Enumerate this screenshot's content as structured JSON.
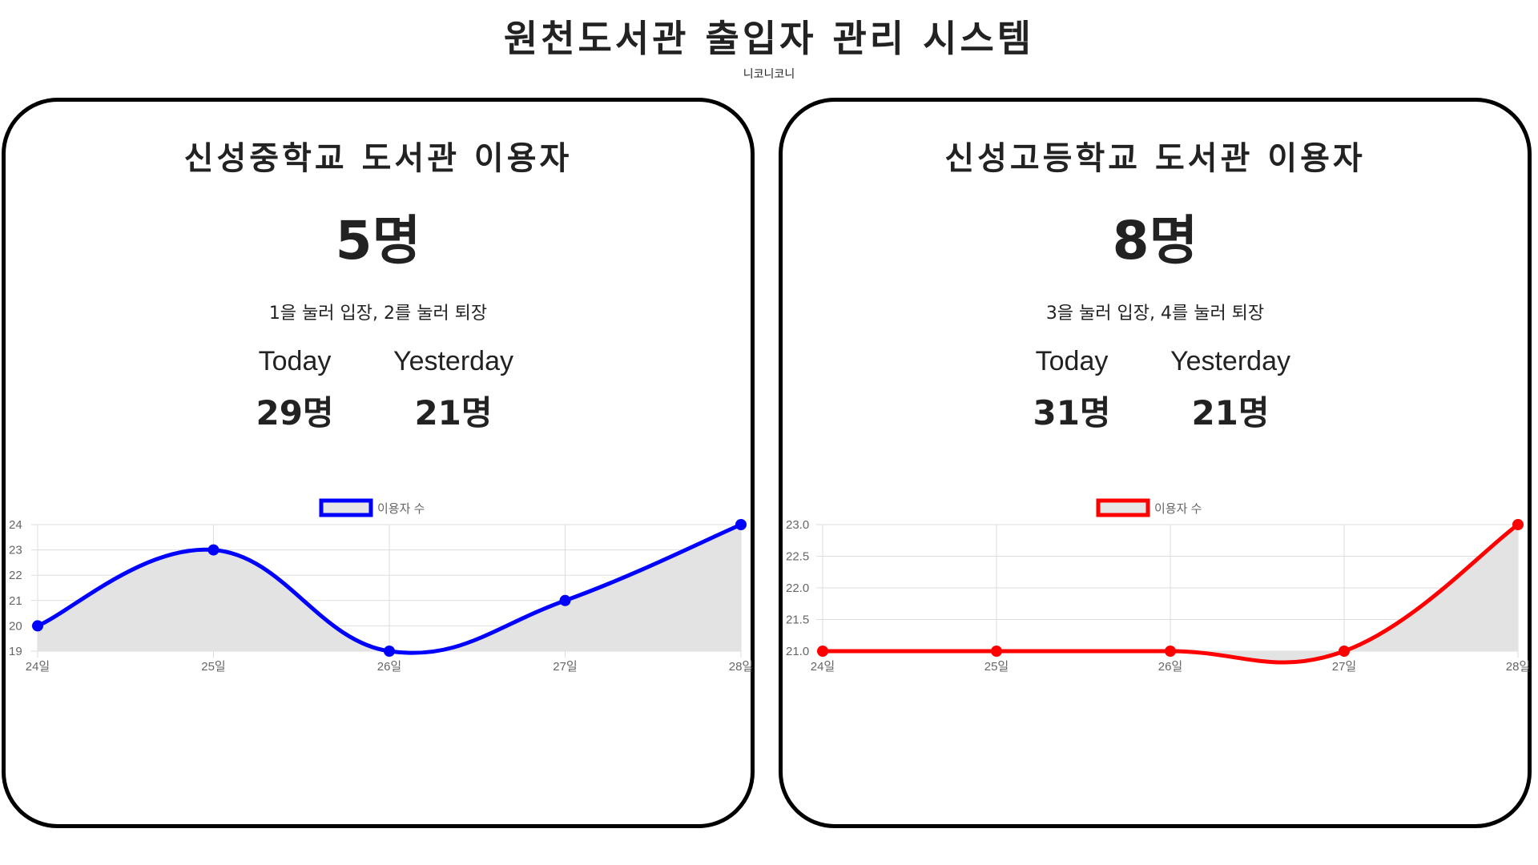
{
  "page": {
    "title": "원천도서관 출입자 관리 시스템",
    "subtitle": "니코니코니"
  },
  "panels": [
    {
      "title": "신성중학교 도서관 이용자",
      "current_count": "5명",
      "instructions": "1을 눌러 입장, 2를 눌러 퇴장",
      "today_label": "Today",
      "today_value": "29명",
      "yesterday_label": "Yesterday",
      "yesterday_value": "21명"
    },
    {
      "title": "신성고등학교 도서관 이용자",
      "current_count": "8명",
      "instructions": "3을 눌러 입장, 4를 눌러 퇴장",
      "today_label": "Today",
      "today_value": "31명",
      "yesterday_label": "Yesterday",
      "yesterday_value": "21명"
    }
  ],
  "chart_data": [
    {
      "type": "line",
      "x": [
        "24일",
        "25일",
        "26일",
        "27일",
        "28일"
      ],
      "series": [
        {
          "name": "이용자 수",
          "values": [
            20,
            23,
            19,
            21,
            24
          ]
        }
      ],
      "ylim": [
        19,
        24
      ],
      "yticks": [
        "24",
        "23",
        "22",
        "21",
        "20",
        "19"
      ],
      "ytick_values": [
        24,
        23,
        22,
        21,
        20,
        19
      ],
      "grid": true,
      "legend": "top-center",
      "line_color": "#0000ff",
      "fill_color": "#e3e3e3",
      "smooth": true
    },
    {
      "type": "line",
      "x": [
        "24일",
        "25일",
        "26일",
        "27일",
        "28일"
      ],
      "series": [
        {
          "name": "이용자 수",
          "values": [
            21,
            21,
            21,
            21,
            23
          ]
        }
      ],
      "ylim": [
        21,
        23
      ],
      "yticks": [
        "23.0",
        "22.5",
        "22.0",
        "21.5",
        "21.0"
      ],
      "ytick_values": [
        23,
        22.5,
        22,
        21.5,
        21
      ],
      "grid": true,
      "legend": "top-center",
      "line_color": "#ff0000",
      "fill_color": "#e3e3e3",
      "smooth": true
    }
  ]
}
